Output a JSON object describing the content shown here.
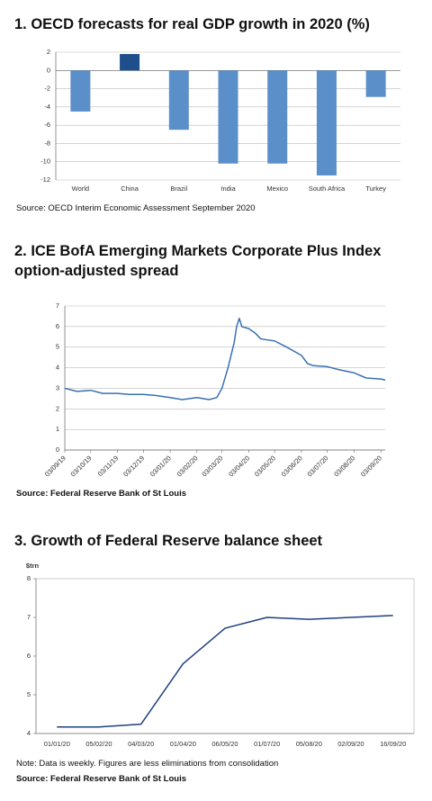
{
  "chart_data": [
    {
      "type": "bar",
      "title": "1. OECD forecasts for real GDP growth in 2020 (%)",
      "categories": [
        "World",
        "China",
        "Brazil",
        "India",
        "Mexico",
        "South Africa",
        "Turkey"
      ],
      "values": [
        -4.5,
        1.8,
        -6.5,
        -10.2,
        -10.2,
        -11.5,
        -2.9
      ],
      "colors": [
        "#5b8fc9",
        "#1f4e8c",
        "#5b8fc9",
        "#5b8fc9",
        "#5b8fc9",
        "#5b8fc9",
        "#5b8fc9"
      ],
      "ylim": [
        -12,
        2
      ],
      "yticks": [
        -12,
        -10,
        -8,
        -6,
        -4,
        -2,
        0,
        2
      ],
      "grid": true,
      "source": "Source: OECD Interim Economic Assessment September 2020"
    },
    {
      "type": "line",
      "title": "2. ICE BofA Emerging Markets Corporate Plus Index option-adjusted spread",
      "x": [
        "03/09/19",
        "17/09/19",
        "03/10/19",
        "17/10/19",
        "03/11/19",
        "17/11/19",
        "03/12/19",
        "17/12/19",
        "03/01/20",
        "17/01/20",
        "03/02/20",
        "17/02/20",
        "26/02/20",
        "03/03/20",
        "10/03/20",
        "17/03/20",
        "20/03/20",
        "23/03/20",
        "26/03/20",
        "03/04/20",
        "10/04/20",
        "17/04/20",
        "03/05/20",
        "17/05/20",
        "03/06/20",
        "10/06/20",
        "17/06/20",
        "03/07/20",
        "17/07/20",
        "03/08/20",
        "17/08/20",
        "03/09/20",
        "08/09/20"
      ],
      "series": [
        {
          "name": "Spread",
          "color": "#3a70b0",
          "values": [
            3.0,
            2.85,
            2.9,
            2.75,
            2.75,
            2.7,
            2.7,
            2.65,
            2.55,
            2.45,
            2.55,
            2.45,
            2.55,
            3.0,
            4.0,
            5.2,
            6.0,
            6.4,
            6.0,
            5.9,
            5.7,
            5.4,
            5.3,
            5.0,
            4.6,
            4.2,
            4.1,
            4.05,
            3.9,
            3.75,
            3.5,
            3.45,
            3.4
          ]
        }
      ],
      "xlim": [
        "03/09/19",
        "08/09/20"
      ],
      "xticks": [
        "03/09/19",
        "03/10/19",
        "03/11/19",
        "03/12/19",
        "03/01/20",
        "03/02/20",
        "03/03/20",
        "03/04/20",
        "03/05/20",
        "03/06/20",
        "03/07/20",
        "03/08/20",
        "03/09/20"
      ],
      "ylim": [
        0,
        7
      ],
      "yticks": [
        0,
        1,
        2,
        3,
        4,
        5,
        6,
        7
      ],
      "grid": true,
      "source": "Source: Federal Reserve Bank of St Louis"
    },
    {
      "type": "line",
      "title": "3. Growth of Federal Reserve balance sheet",
      "y_label": "$trn",
      "categories": [
        "01/01/20",
        "05/02/20",
        "04/03/20",
        "01/04/20",
        "06/05/20",
        "01/07/20",
        "05/08/20",
        "02/09/20",
        "16/09/20"
      ],
      "series": [
        {
          "name": "Balance sheet",
          "color": "#1f3f7f",
          "values": [
            4.17,
            4.17,
            4.24,
            5.8,
            6.72,
            7.0,
            6.95,
            7.0,
            7.05
          ]
        }
      ],
      "ylim": [
        4,
        8
      ],
      "yticks": [
        4,
        5,
        6,
        7,
        8
      ],
      "grid": false,
      "note": "Note: Data is weekly. Figures are less eliminations from consolidation",
      "source": "Source: Federal Reserve Bank of St Louis"
    }
  ]
}
